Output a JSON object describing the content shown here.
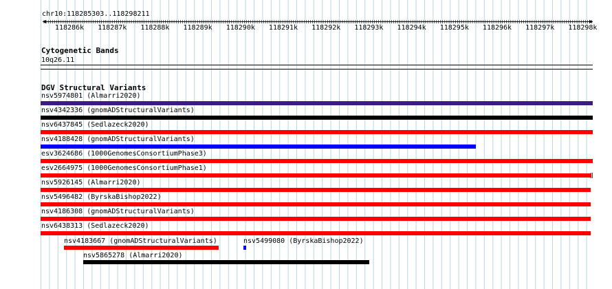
{
  "ruler": {
    "location": "chr10:118285303..118298211",
    "ticks": [
      "118286k",
      "118287k",
      "118288k",
      "118289k",
      "118290k",
      "118291k",
      "118292k",
      "118293k",
      "118294k",
      "118295k",
      "118296k",
      "118297k",
      "118298k"
    ]
  },
  "cytoband": {
    "title": "Cytogenetic Bands",
    "band": "10q26.11"
  },
  "dgv": {
    "title": "DGV Structural Variants",
    "features": [
      {
        "label": "nsv5974801 (Almarri2020)",
        "color": "#3d1a8a"
      },
      {
        "label": "nsv4342336 (gnomADStructuralVariants)",
        "color": "#000000"
      },
      {
        "label": "nsv6437845 (Sedlazeck2020)",
        "color": "#ff0000"
      },
      {
        "label": "nsv4188428 (gnomADStructuralVariants)",
        "color": "#0000ff"
      },
      {
        "label": "esv3624686 (1000GenomesConsortiumPhase3)",
        "color": "#ff0000"
      },
      {
        "label": "esv2664975 (1000GenomesConsortiumPhase1)",
        "color": "#ff0000"
      },
      {
        "label": "nsv5926145 (Almarri2020)",
        "color": "#ff0000"
      },
      {
        "label": "nsv5496482 (ByrskaBishop2022)",
        "color": "#ff0000"
      },
      {
        "label": "nsv4186308 (gnomADStructuralVariants)",
        "color": "#ff0000"
      },
      {
        "label": "nsv6438313 (Sedlazeck2020)",
        "color": "#ff0000"
      },
      {
        "label": "nsv4183667 (gnomADStructuralVariants)",
        "color": "#ff0000"
      },
      {
        "label": "nsv5499080 (ByrskaBishop2022)",
        "color": "#0000ff"
      },
      {
        "label": "nsv5865278 (Almarri2020)",
        "color": "#000000"
      }
    ]
  },
  "colors": {
    "gridline": "#b8d8de",
    "ruler": "#000000"
  }
}
